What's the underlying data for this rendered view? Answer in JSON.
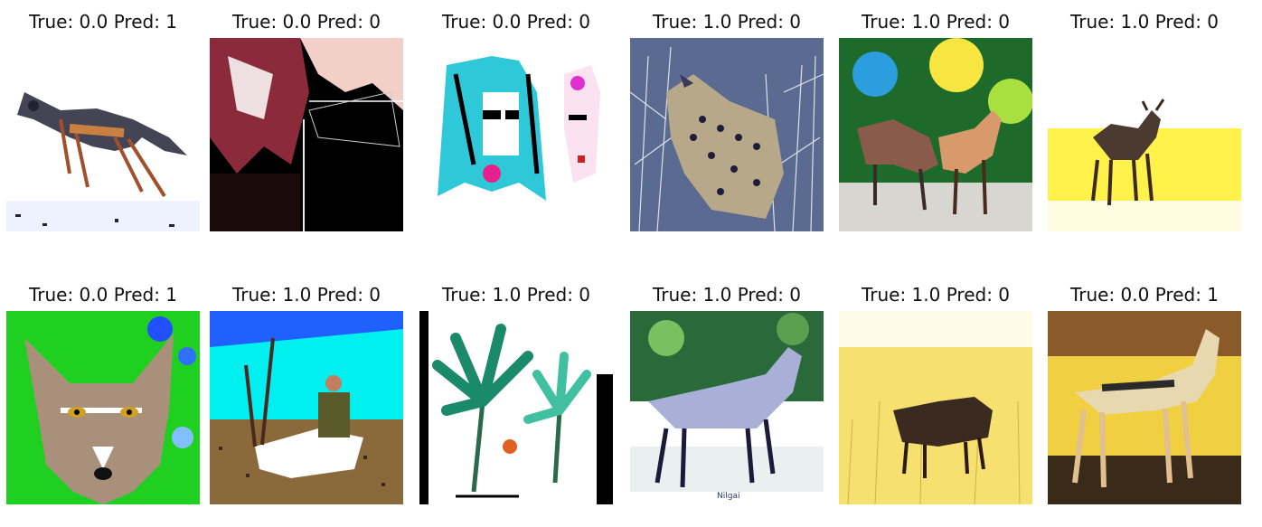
{
  "figure": {
    "panels": [
      {
        "true_label": "True: 0.0",
        "pred_label": "Pred: 1",
        "subject": "jackal walking on white ground"
      },
      {
        "true_label": "True: 0.0",
        "pred_label": "Pred: 0",
        "subject": "dark rocky scene with fence"
      },
      {
        "true_label": "True: 0.0",
        "pred_label": "Pred: 0",
        "subject": "cartoon figures on white"
      },
      {
        "true_label": "True: 1.0",
        "pred_label": "Pred: 0",
        "subject": "leopard in grass"
      },
      {
        "true_label": "True: 1.0",
        "pred_label": "Pred: 0",
        "subject": "two antelopes in forest"
      },
      {
        "true_label": "True: 1.0",
        "pred_label": "Pred: 0",
        "subject": "antelope on yellow field"
      },
      {
        "true_label": "True: 0.0",
        "pred_label": "Pred: 1",
        "subject": "jackal face on green background"
      },
      {
        "true_label": "True: 1.0",
        "pred_label": "Pred: 0",
        "subject": "hunter with antelope under cyan sky"
      },
      {
        "true_label": "True: 1.0",
        "pred_label": "Pred: 0",
        "subject": "painted palm trees mural"
      },
      {
        "true_label": "True: 1.0",
        "pred_label": "Pred: 0",
        "subject": "nilgai standing",
        "watermark": "Nilgai"
      },
      {
        "true_label": "True: 1.0",
        "pred_label": "Pred: 0",
        "subject": "animal in yellow grass"
      },
      {
        "true_label": "True: 0.0",
        "pred_label": "Pred: 1",
        "subject": "jackal standing in dry field"
      }
    ]
  }
}
